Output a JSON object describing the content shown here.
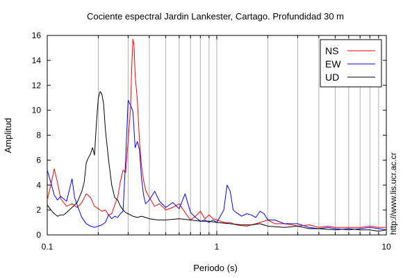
{
  "chart_data": {
    "type": "line",
    "title": "Cociente espectral Jardin Lankester, Cartago. Profundidad 30 m",
    "xlabel": "Periodo (s)",
    "ylabel": "Amplitud",
    "xscale": "log",
    "xlim": [
      0.1,
      10
    ],
    "ylim": [
      0,
      16
    ],
    "x_tick_labels": [
      "0.1",
      "1",
      "10"
    ],
    "y_tick_labels": [
      "0",
      "2",
      "4",
      "6",
      "8",
      "10",
      "12",
      "14",
      "16"
    ],
    "grid": "on",
    "legend_position": "top-right",
    "credit": "http://www.lis.ucr.ac.cr",
    "series": [
      {
        "name": "NS",
        "color": "#ff0000",
        "points": [
          [
            0.1,
            2.8
          ],
          [
            0.105,
            4.0
          ],
          [
            0.11,
            5.3
          ],
          [
            0.115,
            4.2
          ],
          [
            0.12,
            2.9
          ],
          [
            0.13,
            2.3
          ],
          [
            0.14,
            2.5
          ],
          [
            0.15,
            2.2
          ],
          [
            0.16,
            2.6
          ],
          [
            0.17,
            3.3
          ],
          [
            0.18,
            3.0
          ],
          [
            0.19,
            2.3
          ],
          [
            0.2,
            2.1
          ],
          [
            0.21,
            1.9
          ],
          [
            0.22,
            2.0
          ],
          [
            0.23,
            1.6
          ],
          [
            0.24,
            1.7
          ],
          [
            0.25,
            2.4
          ],
          [
            0.26,
            3.0
          ],
          [
            0.27,
            4.3
          ],
          [
            0.28,
            5.2
          ],
          [
            0.29,
            5.0
          ],
          [
            0.3,
            7.5
          ],
          [
            0.31,
            10.2
          ],
          [
            0.315,
            13.5
          ],
          [
            0.32,
            15.7
          ],
          [
            0.325,
            15.2
          ],
          [
            0.33,
            12.8
          ],
          [
            0.34,
            10.8
          ],
          [
            0.35,
            7.5
          ],
          [
            0.36,
            5.5
          ],
          [
            0.37,
            4.4
          ],
          [
            0.38,
            3.6
          ],
          [
            0.4,
            3.0
          ],
          [
            0.43,
            2.3
          ],
          [
            0.46,
            2.5
          ],
          [
            0.5,
            2.0
          ],
          [
            0.55,
            2.2
          ],
          [
            0.6,
            2.5
          ],
          [
            0.65,
            1.8
          ],
          [
            0.7,
            1.2
          ],
          [
            0.75,
            1.5
          ],
          [
            0.8,
            1.9
          ],
          [
            0.85,
            1.3
          ],
          [
            0.9,
            1.6
          ],
          [
            0.95,
            1.3
          ],
          [
            1.0,
            1.2
          ],
          [
            1.1,
            1.0
          ],
          [
            1.2,
            1.0
          ],
          [
            1.3,
            0.8
          ],
          [
            1.5,
            0.7
          ],
          [
            1.7,
            0.9
          ],
          [
            2.0,
            1.2
          ],
          [
            2.2,
            0.9
          ],
          [
            2.5,
            0.9
          ],
          [
            2.8,
            0.8
          ],
          [
            3.0,
            0.7
          ],
          [
            3.5,
            0.8
          ],
          [
            4.0,
            0.6
          ],
          [
            4.5,
            0.7
          ],
          [
            5.0,
            0.6
          ],
          [
            6.0,
            0.6
          ],
          [
            7.0,
            0.6
          ],
          [
            8.0,
            0.7
          ],
          [
            9.0,
            0.6
          ],
          [
            10.0,
            0.6
          ]
        ]
      },
      {
        "name": "EW",
        "color": "#0000ff",
        "points": [
          [
            0.1,
            5.2
          ],
          [
            0.105,
            4.2
          ],
          [
            0.11,
            3.2
          ],
          [
            0.115,
            2.8
          ],
          [
            0.12,
            3.1
          ],
          [
            0.125,
            2.9
          ],
          [
            0.13,
            2.7
          ],
          [
            0.135,
            3.6
          ],
          [
            0.14,
            4.5
          ],
          [
            0.145,
            3.0
          ],
          [
            0.15,
            2.4
          ],
          [
            0.16,
            1.4
          ],
          [
            0.17,
            0.9
          ],
          [
            0.18,
            0.7
          ],
          [
            0.19,
            0.6
          ],
          [
            0.2,
            0.7
          ],
          [
            0.21,
            0.8
          ],
          [
            0.22,
            1.0
          ],
          [
            0.23,
            1.6
          ],
          [
            0.24,
            1.3
          ],
          [
            0.25,
            1.5
          ],
          [
            0.26,
            1.4
          ],
          [
            0.27,
            1.7
          ],
          [
            0.28,
            1.9
          ],
          [
            0.29,
            6.0
          ],
          [
            0.3,
            10.8
          ],
          [
            0.31,
            10.4
          ],
          [
            0.32,
            9.9
          ],
          [
            0.33,
            7.0
          ],
          [
            0.34,
            7.5
          ],
          [
            0.35,
            6.8
          ],
          [
            0.36,
            4.5
          ],
          [
            0.37,
            3.2
          ],
          [
            0.38,
            2.5
          ],
          [
            0.4,
            2.8
          ],
          [
            0.43,
            3.5
          ],
          [
            0.46,
            2.7
          ],
          [
            0.5,
            2.2
          ],
          [
            0.55,
            2.6
          ],
          [
            0.6,
            2.1
          ],
          [
            0.65,
            3.3
          ],
          [
            0.7,
            1.8
          ],
          [
            0.75,
            1.4
          ],
          [
            0.8,
            1.1
          ],
          [
            0.85,
            1.2
          ],
          [
            0.9,
            1.0
          ],
          [
            0.95,
            1.2
          ],
          [
            1.0,
            1.0
          ],
          [
            1.1,
            2.0
          ],
          [
            1.15,
            4.0
          ],
          [
            1.2,
            3.5
          ],
          [
            1.25,
            2.0
          ],
          [
            1.3,
            1.8
          ],
          [
            1.4,
            1.5
          ],
          [
            1.5,
            1.7
          ],
          [
            1.6,
            1.6
          ],
          [
            1.7,
            1.4
          ],
          [
            1.8,
            1.9
          ],
          [
            1.9,
            1.7
          ],
          [
            2.0,
            1.2
          ],
          [
            2.2,
            1.2
          ],
          [
            2.5,
            0.9
          ],
          [
            3.0,
            0.9
          ],
          [
            3.5,
            0.6
          ],
          [
            4.0,
            0.5
          ],
          [
            4.5,
            0.6
          ],
          [
            5.0,
            0.5
          ],
          [
            6.0,
            0.4
          ],
          [
            7.0,
            0.5
          ],
          [
            8.0,
            0.6
          ],
          [
            9.0,
            0.5
          ],
          [
            10.0,
            0.4
          ]
        ]
      },
      {
        "name": "UD",
        "color": "#000000",
        "points": [
          [
            0.1,
            2.4
          ],
          [
            0.105,
            2.0
          ],
          [
            0.11,
            1.7
          ],
          [
            0.115,
            1.5
          ],
          [
            0.12,
            1.6
          ],
          [
            0.125,
            1.6
          ],
          [
            0.13,
            1.8
          ],
          [
            0.14,
            2.2
          ],
          [
            0.15,
            2.6
          ],
          [
            0.16,
            3.5
          ],
          [
            0.165,
            4.2
          ],
          [
            0.17,
            5.8
          ],
          [
            0.175,
            6.2
          ],
          [
            0.18,
            6.5
          ],
          [
            0.185,
            7.0
          ],
          [
            0.19,
            6.4
          ],
          [
            0.195,
            9.0
          ],
          [
            0.2,
            11.0
          ],
          [
            0.205,
            11.5
          ],
          [
            0.21,
            11.3
          ],
          [
            0.215,
            10.5
          ],
          [
            0.22,
            8.5
          ],
          [
            0.23,
            6.0
          ],
          [
            0.24,
            4.0
          ],
          [
            0.25,
            3.0
          ],
          [
            0.26,
            2.8
          ],
          [
            0.27,
            2.3
          ],
          [
            0.28,
            2.0
          ],
          [
            0.29,
            1.8
          ],
          [
            0.3,
            1.7
          ],
          [
            0.32,
            1.5
          ],
          [
            0.34,
            1.4
          ],
          [
            0.36,
            1.5
          ],
          [
            0.38,
            1.4
          ],
          [
            0.4,
            1.3
          ],
          [
            0.45,
            1.2
          ],
          [
            0.5,
            1.2
          ],
          [
            0.6,
            1.3
          ],
          [
            0.7,
            1.2
          ],
          [
            0.8,
            1.1
          ],
          [
            0.9,
            1.1
          ],
          [
            1.0,
            1.0
          ],
          [
            1.2,
            0.9
          ],
          [
            1.4,
            0.8
          ],
          [
            1.6,
            0.8
          ],
          [
            1.8,
            0.9
          ],
          [
            2.0,
            0.7
          ],
          [
            2.5,
            0.6
          ],
          [
            3.0,
            0.7
          ],
          [
            3.5,
            0.5
          ],
          [
            4.0,
            0.5
          ],
          [
            5.0,
            0.4
          ],
          [
            6.0,
            0.5
          ],
          [
            7.0,
            0.4
          ],
          [
            8.0,
            0.4
          ],
          [
            9.0,
            0.3
          ],
          [
            10.0,
            0.4
          ]
        ]
      }
    ]
  }
}
